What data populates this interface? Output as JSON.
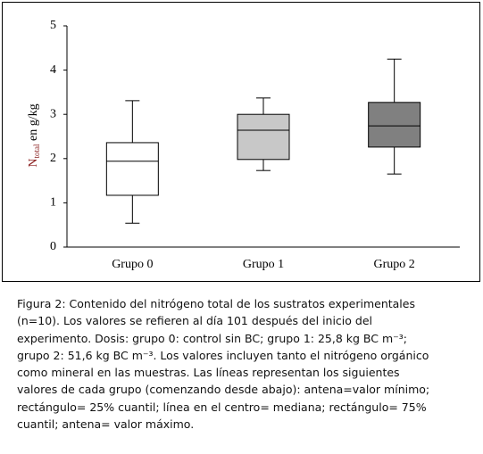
{
  "chart_data": {
    "type": "box",
    "y_label": {
      "main": "N",
      "sub": "total",
      "rest": " en g/kg"
    },
    "categories": [
      "Grupo 0",
      "Grupo 1",
      "Grupo 2"
    ],
    "min": [
      0.54,
      1.73,
      1.65
    ],
    "q1": [
      1.17,
      1.98,
      2.26
    ],
    "median": [
      1.94,
      2.64,
      2.74
    ],
    "q3": [
      2.36,
      3.0,
      3.27
    ],
    "max": [
      3.31,
      3.37,
      4.25
    ],
    "colors": [
      "#ffffff",
      "#c8c8c8",
      "#808080"
    ],
    "ylim": [
      0,
      5
    ],
    "yticks": [
      0,
      1,
      2,
      3,
      4,
      5
    ]
  },
  "caption_lines": [
    "Figura 2: Contenido del nitrógeno total de los sustratos experimentales",
    "(n=10). Los valores se refieren al día 101 después del inicio del",
    "experimento. Dosis: grupo 0: control sin BC; grupo 1: 25,8 kg BC m⁻³;",
    "grupo 2: 51,6 kg BC m⁻³. Los valores incluyen tanto el nitrógeno orgánico",
    "como mineral en las muestras. Las líneas representan los siguientes",
    "valores de cada grupo (comenzando desde abajo): antena=valor mínimo;",
    "rectángulo= 25% cuantil; línea en el centro= mediana; rectángulo= 75%",
    "cuantil; antena= valor máximo."
  ]
}
